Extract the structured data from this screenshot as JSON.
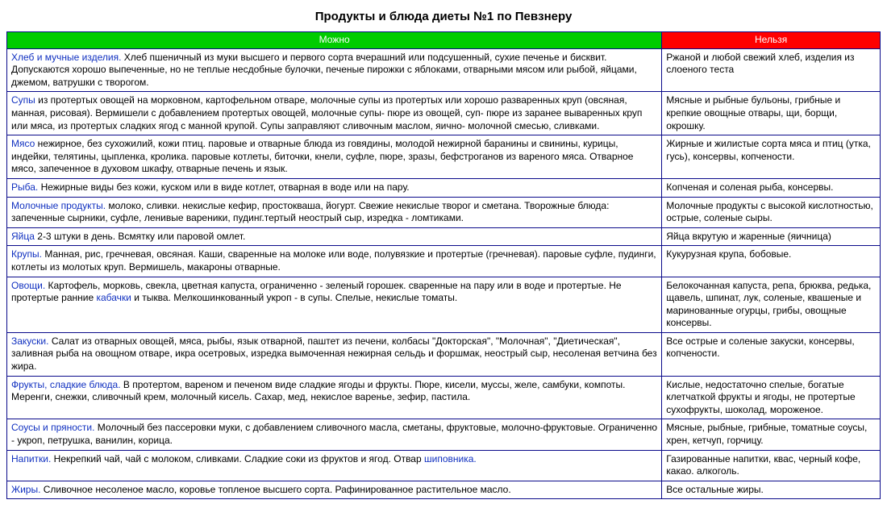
{
  "title": "Продукты и блюда диеты №1 по Певзнеру",
  "headers": {
    "allowed": "Можно",
    "forbidden": "Нельзя"
  },
  "colors": {
    "allowed_header_bg": "#00cc00",
    "forbidden_header_bg": "#ff0000",
    "border": "#0a0a8a",
    "category_link": "#1030c0"
  },
  "rows": [
    {
      "category": "Хлеб и мучные изделия.",
      "allowed": "Хлеб пшеничный из муки высшего и первого сорта вчерашний или подсушенный, сухие печенье и бисквит. Допускаются хорошо выпеченные, но не теплые несдобные булочки, печеные пирожки с яблоками, отварными мясом или рыбой, яйцами, джемом, ватрушки с творогом.",
      "forbidden": "Ржаной и любой свежий хлеб, изделия из слоеного теста"
    },
    {
      "category": "Супы",
      "allowed": "из протертых овощей на морковном, картофельном отваре, молочные супы из протертых или хорошо разваренных круп (овсяная, манная, рисовая). Вермишели с добавлением протертых овощей, молочные супы- пюре из овощей, суп- пюре из заранее вываренных круп или мяса, из протертых сладких ягод с манной крупой. Супы заправляют сливочным маслом, яично- молочной смесью, сливками.",
      "forbidden": "Мясные и рыбные бульоны, грибные и крепкие овощные отвары, щи, борщи, окрошку."
    },
    {
      "category": "Мясо",
      "allowed": "нежирное, без сухожилий, кожи птиц. паровые и отварные блюда из говядины, молодой нежирной баранины и свинины, курицы, индейки, телятины, цыпленка, кролика. паровые котлеты, биточки, кнели, суфле, пюре, зразы, бефстроганов из вареного мяса. Отварное мясо, запеченное в духовом шкафу, отварные печень и язык.",
      "forbidden": "Жирные и жилистые сорта мяса и птиц (утка, гусь), консервы, копчености."
    },
    {
      "category": "Рыба.",
      "allowed": "Нежирные виды без кожи, куском или в виде котлет, отварная в воде или на пару.",
      "forbidden": "Копченая и соленая рыба, консервы."
    },
    {
      "category": "Молочные продукты.",
      "allowed": "молоко, сливки. некислые кефир, простокваша, йогурт. Свежие некислые творог и сметана. Творожные блюда: запеченные сырники, суфле, ленивые вареники, пудинг.тертый неострый сыр, изредка - ломтиками.",
      "forbidden": "Молочные продукты с высокой кислотностью, острые, соленые сыры."
    },
    {
      "category": "Яйца",
      "allowed": "2-3 штуки в день. Всмятку или паровой омлет.",
      "forbidden": "Яйца вкрутую и жаренные (яичница)"
    },
    {
      "category": "Крупы.",
      "allowed": "Манная, рис, гречневая, овсяная. Каши, сваренные на молоке или воде, полувязкие и протертые (гречневая). паровые суфле, пудинги, котлеты из молотых круп. Вермишель, макароны отварные.",
      "forbidden": "Кукурузная крупа, бобовые."
    },
    {
      "category": "Овощи.",
      "allowed_pre": "Картофель, морковь, свекла, цветная капуста, ограниченно - зеленый горошек. сваренные на пару или в воде и протертые. Не протертые ранние ",
      "inline_link": "кабачки",
      "allowed_post": " и тыква. Мелкошинкованный укроп - в супы. Спелые, некислые томаты.",
      "forbidden": "Белокочанная капуста, репа, брюква, редька, щавель, шпинат, лук, соленые, квашеные и маринованные огурцы, грибы, овощные консервы."
    },
    {
      "category": "Закуски.",
      "allowed": "Салат из отварных овощей, мяса, рыбы, язык отварной, паштет из печени, колбасы \"Докторская\", \"Молочная\", \"Диетическая\", заливная рыба на овощном отваре, икра осетровых, изредка вымоченная нежирная сельдь и форшмак, неострый сыр, несоленая ветчина без жира.",
      "forbidden": "Все острые и соленые закуски, консервы, копчености."
    },
    {
      "category": "Фрукты, сладкие блюда.",
      "allowed": "В протертом, вареном и печеном виде сладкие ягоды и фрукты. Пюре, кисели, муссы, желе, самбуки, компоты. Меренги, снежки, сливочный крем, молочный кисель. Сахар, мед, некислое варенье, зефир, пастила.",
      "forbidden": "Кислые, недостаточно спелые, богатые клетчаткой фрукты и ягоды, не протертые сухофрукты, шоколад, мороженое."
    },
    {
      "category": "Соусы и пряности.",
      "allowed": "Молочный без пассеровки муки, с добавлением сливочного масла, сметаны, фруктовые, молочно-фруктовые. Ограниченно - укроп, петрушка, ванилин, корица.",
      "forbidden": "Мясные, рыбные, грибные, томатные соусы, хрен, кетчуп, горчицу."
    },
    {
      "category": "Напитки.",
      "allowed_pre": "Некрепкий чай, чай с молоком, сливками. Сладкие соки из фруктов и ягод. Отвар ",
      "inline_link": "шиповника.",
      "allowed_post": "",
      "forbidden": "Газированные напитки, квас, черный кофе, какао. алкоголь."
    },
    {
      "category": "Жиры.",
      "allowed": "Сливочное несоленое масло, коровье топленое высшего сорта. Рафинированное растительное масло.",
      "forbidden": "Все остальные жиры."
    }
  ]
}
